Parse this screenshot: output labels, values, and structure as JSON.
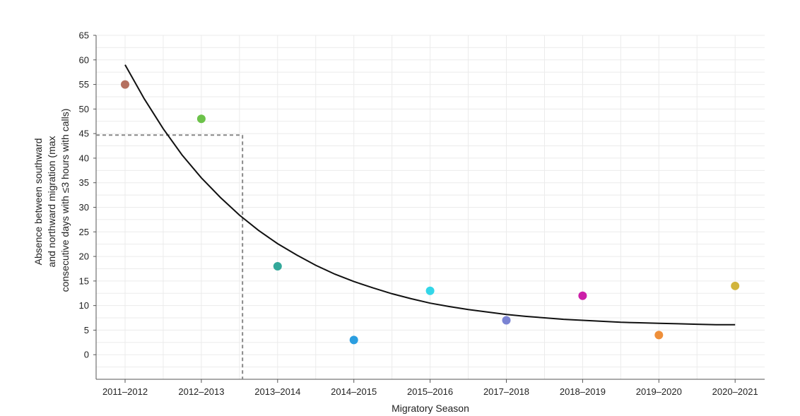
{
  "chart_data": {
    "type": "scatter",
    "title": "",
    "xlabel": "Migratory Season",
    "ylabel_lines": [
      "Absence between southward",
      "and northward migration (max",
      "consecutive days with ≤3 hours with calls)"
    ],
    "categories": [
      "2011–2012",
      "2012–2013",
      "2013–2014",
      "2014–2015",
      "2015–2016",
      "2017–2018",
      "2018–2019",
      "2019–2020",
      "2020–2021"
    ],
    "values": [
      55,
      48,
      18,
      3,
      13,
      7,
      12,
      4,
      14
    ],
    "point_colors": [
      "#b5705f",
      "#6cc24a",
      "#33a89a",
      "#2b9ee0",
      "#33d6e8",
      "#7a83d3",
      "#cc1fa8",
      "#ee8f3a",
      "#d1b43c"
    ],
    "ylim": [
      -5,
      65
    ],
    "yticks": [
      0,
      5,
      10,
      15,
      20,
      25,
      30,
      35,
      40,
      45,
      50,
      55,
      60,
      65
    ],
    "grid": true,
    "trend": {
      "type": "exponential-decay",
      "color": "#111111",
      "points": [
        [
          0,
          59.0
        ],
        [
          0.25,
          52.1
        ],
        [
          0.5,
          46.0
        ],
        [
          0.75,
          40.6
        ],
        [
          1,
          36.0
        ],
        [
          1.25,
          32.0
        ],
        [
          1.5,
          28.4
        ],
        [
          1.75,
          25.3
        ],
        [
          2,
          22.6
        ],
        [
          2.25,
          20.3
        ],
        [
          2.5,
          18.2
        ],
        [
          2.75,
          16.4
        ],
        [
          3,
          14.9
        ],
        [
          3.25,
          13.6
        ],
        [
          3.5,
          12.4
        ],
        [
          3.75,
          11.4
        ],
        [
          4,
          10.5
        ],
        [
          4.25,
          9.8
        ],
        [
          4.5,
          9.2
        ],
        [
          4.75,
          8.7
        ],
        [
          5,
          8.2
        ],
        [
          5.25,
          7.8
        ],
        [
          5.5,
          7.5
        ],
        [
          5.75,
          7.2
        ],
        [
          6,
          7.0
        ],
        [
          6.25,
          6.8
        ],
        [
          6.5,
          6.6
        ],
        [
          6.75,
          6.5
        ],
        [
          7,
          6.4
        ],
        [
          7.25,
          6.3
        ],
        [
          7.5,
          6.2
        ],
        [
          7.75,
          6.1
        ],
        [
          8,
          6.1
        ]
      ]
    },
    "reference": {
      "color": "#888888",
      "x": 1.54,
      "y": 44.7
    }
  }
}
